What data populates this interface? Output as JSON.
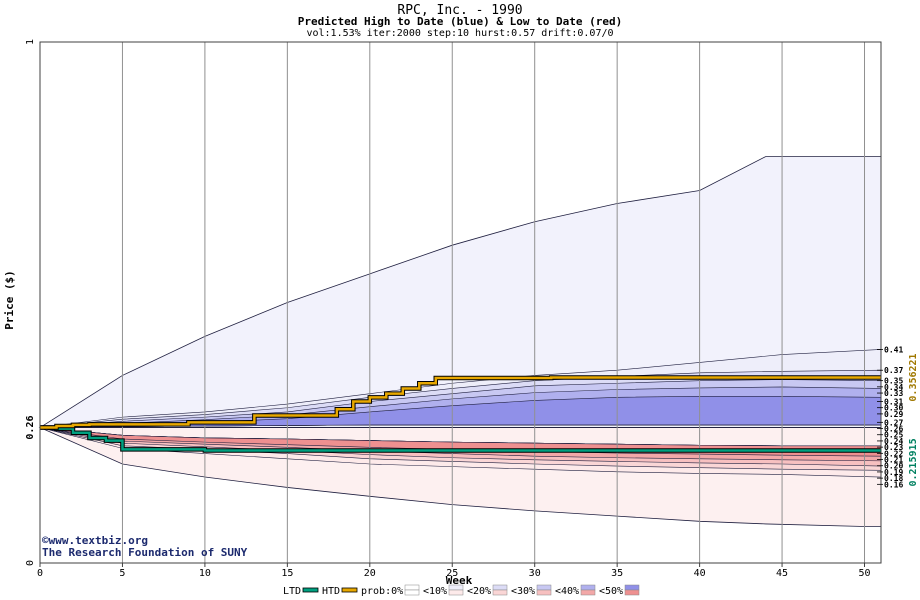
{
  "chart_data": {
    "type": "area",
    "title": "RPC, Inc. - 1990",
    "subtitle": "Predicted High to Date (blue) &  Low to Date (red)",
    "params": "vol:1.53% iter:2000 step:10 hurst:0.57 drift:0.07/0",
    "xlabel": "Week",
    "ylabel": "Price ($)",
    "xlim": [
      0,
      51
    ],
    "ylim": [
      0,
      1
    ],
    "x_ticks": [
      0,
      5,
      10,
      15,
      20,
      25,
      30,
      35,
      40,
      45,
      50
    ],
    "y_ticks": [
      {
        "value": 0,
        "label": "0",
        "highlight": false
      },
      {
        "value": 0.26,
        "label": "0.26",
        "highlight": true
      },
      {
        "value": 1,
        "label": "1",
        "highlight": false
      }
    ],
    "start_price": 0.26,
    "envelope": {
      "x": [
        0,
        5,
        10,
        15,
        20,
        25,
        30,
        35,
        40,
        44,
        50,
        51
      ],
      "upper": [
        0.26,
        0.36,
        0.435,
        0.5,
        0.555,
        0.61,
        0.655,
        0.69,
        0.715,
        0.78,
        0.78,
        0.78
      ],
      "lower": [
        0.26,
        0.19,
        0.165,
        0.145,
        0.128,
        0.112,
        0.1,
        0.09,
        0.08,
        0.075,
        0.07,
        0.07
      ]
    },
    "bands": [
      {
        "name": "high <10%",
        "color": "#eeeefa",
        "top": [
          0.26,
          0.28,
          0.29,
          0.305,
          0.325,
          0.345,
          0.36,
          0.37,
          0.385,
          0.4,
          0.41
        ],
        "bottom": [
          0.26,
          0.262,
          0.263,
          0.264,
          0.265,
          0.265,
          0.265,
          0.265,
          0.265,
          0.265,
          0.265
        ]
      },
      {
        "name": "high <20%",
        "color": "#dcdcf6",
        "top": [
          0.26,
          0.276,
          0.285,
          0.298,
          0.318,
          0.335,
          0.35,
          0.358,
          0.365,
          0.368,
          0.37
        ],
        "bottom": [
          0.26,
          0.262,
          0.263,
          0.264,
          0.265,
          0.265,
          0.265,
          0.265,
          0.265,
          0.265,
          0.265
        ]
      },
      {
        "name": "high <30%",
        "color": "#c8c8f2",
        "top": [
          0.26,
          0.272,
          0.28,
          0.29,
          0.31,
          0.325,
          0.34,
          0.345,
          0.35,
          0.352,
          0.35
        ],
        "bottom": [
          0.26,
          0.262,
          0.263,
          0.264,
          0.265,
          0.265,
          0.265,
          0.265,
          0.265,
          0.265,
          0.265
        ]
      },
      {
        "name": "high <40%",
        "color": "#b0b0ee",
        "top": [
          0.26,
          0.268,
          0.275,
          0.284,
          0.3,
          0.315,
          0.327,
          0.333,
          0.336,
          0.338,
          0.335
        ],
        "bottom": [
          0.26,
          0.262,
          0.263,
          0.264,
          0.265,
          0.265,
          0.265,
          0.265,
          0.265,
          0.265,
          0.265
        ]
      },
      {
        "name": "high <50%",
        "color": "#9090e8",
        "top": [
          0.26,
          0.265,
          0.27,
          0.277,
          0.29,
          0.302,
          0.312,
          0.318,
          0.32,
          0.32,
          0.318
        ],
        "bottom": [
          0.26,
          0.262,
          0.263,
          0.264,
          0.265,
          0.265,
          0.265,
          0.265,
          0.265,
          0.265,
          0.265
        ]
      },
      {
        "name": "low <10%",
        "color": "#fdeaea",
        "top": [
          0.26,
          0.245,
          0.24,
          0.238,
          0.235,
          0.232,
          0.23,
          0.228,
          0.226,
          0.225,
          0.225
        ],
        "bottom": [
          0.26,
          0.22,
          0.21,
          0.2,
          0.19,
          0.185,
          0.18,
          0.175,
          0.172,
          0.17,
          0.165
        ]
      },
      {
        "name": "low <20%",
        "color": "#fad6d6",
        "top": [
          0.26,
          0.245,
          0.24,
          0.238,
          0.235,
          0.232,
          0.23,
          0.228,
          0.226,
          0.225,
          0.225
        ],
        "bottom": [
          0.26,
          0.225,
          0.218,
          0.21,
          0.2,
          0.195,
          0.19,
          0.186,
          0.183,
          0.18,
          0.178
        ]
      },
      {
        "name": "low <30%",
        "color": "#f7c0c0",
        "top": [
          0.26,
          0.245,
          0.24,
          0.238,
          0.235,
          0.232,
          0.23,
          0.228,
          0.226,
          0.225,
          0.225
        ],
        "bottom": [
          0.26,
          0.23,
          0.223,
          0.216,
          0.208,
          0.202,
          0.198,
          0.195,
          0.192,
          0.19,
          0.186
        ]
      },
      {
        "name": "low <40%",
        "color": "#f2a8a8",
        "top": [
          0.26,
          0.245,
          0.24,
          0.238,
          0.235,
          0.232,
          0.23,
          0.228,
          0.226,
          0.225,
          0.225
        ],
        "bottom": [
          0.26,
          0.234,
          0.228,
          0.222,
          0.215,
          0.21,
          0.205,
          0.202,
          0.2,
          0.198,
          0.196
        ]
      },
      {
        "name": "low <50%",
        "color": "#ee9090",
        "top": [
          0.26,
          0.245,
          0.24,
          0.238,
          0.235,
          0.232,
          0.23,
          0.228,
          0.226,
          0.225,
          0.225
        ],
        "bottom": [
          0.26,
          0.238,
          0.232,
          0.227,
          0.222,
          0.218,
          0.214,
          0.211,
          0.209,
          0.207,
          0.205
        ]
      }
    ],
    "band_x": [
      0,
      5,
      10,
      15,
      20,
      25,
      30,
      35,
      40,
      45,
      51
    ],
    "band_labels": [
      "0.41",
      "0.37",
      "0.35",
      "0.34",
      "0.33",
      "0.31",
      "0.30",
      "0.29",
      "0.27",
      "0.26",
      "0.25",
      "0.24",
      "0.23",
      "0.22",
      "0.21",
      "0.20",
      "0.19",
      "0.18",
      "0.16"
    ],
    "band_label_values": [
      0.41,
      0.37,
      0.35,
      0.34,
      0.33,
      0.31,
      0.3,
      0.29,
      0.27,
      0.26,
      0.25,
      0.24,
      0.23,
      0.22,
      0.21,
      0.2,
      0.19,
      0.18,
      0.16
    ],
    "htd_series": {
      "name": "HTD",
      "color": "#e8a800",
      "final_label": "0.356221",
      "x": [
        0,
        1,
        2,
        3,
        8,
        9,
        12,
        13,
        17,
        18,
        19,
        20,
        21,
        22,
        23,
        24,
        30,
        31,
        51
      ],
      "y": [
        0.26,
        0.263,
        0.265,
        0.266,
        0.266,
        0.27,
        0.27,
        0.283,
        0.283,
        0.295,
        0.31,
        0.318,
        0.325,
        0.335,
        0.345,
        0.355,
        0.355,
        0.356,
        0.356
      ]
    },
    "ltd_series": {
      "name": "LTD",
      "color": "#00a080",
      "final_label": "0.215915",
      "x": [
        0,
        1,
        2,
        3,
        4,
        5,
        10,
        51
      ],
      "y": [
        0.26,
        0.258,
        0.25,
        0.24,
        0.235,
        0.218,
        0.216,
        0.216
      ]
    },
    "legend": [
      {
        "label": "LTD",
        "kind": "line",
        "color": "#00a080"
      },
      {
        "label": "HTD",
        "kind": "line",
        "color": "#e8a800"
      },
      {
        "label": "prob:0%",
        "kind": "swatch",
        "color": "#ffffff",
        "color2": "#ffffff"
      },
      {
        "label": "<10%",
        "kind": "swatch",
        "color": "#eeeefa",
        "color2": "#fdeaea"
      },
      {
        "label": "<20%",
        "kind": "swatch",
        "color": "#dcdcf6",
        "color2": "#fad6d6"
      },
      {
        "label": "<30%",
        "kind": "swatch",
        "color": "#c8c8f2",
        "color2": "#f7c0c0"
      },
      {
        "label": "<40%",
        "kind": "swatch",
        "color": "#b0b0ee",
        "color2": "#f2a8a8"
      },
      {
        "label": "<50%",
        "kind": "swatch",
        "color": "#9090e8",
        "color2": "#ee9090"
      }
    ]
  },
  "credits": {
    "site": "www.textbiz.org",
    "org": "The Research Foundation of SUNY",
    "copyright_symbol": "©"
  }
}
